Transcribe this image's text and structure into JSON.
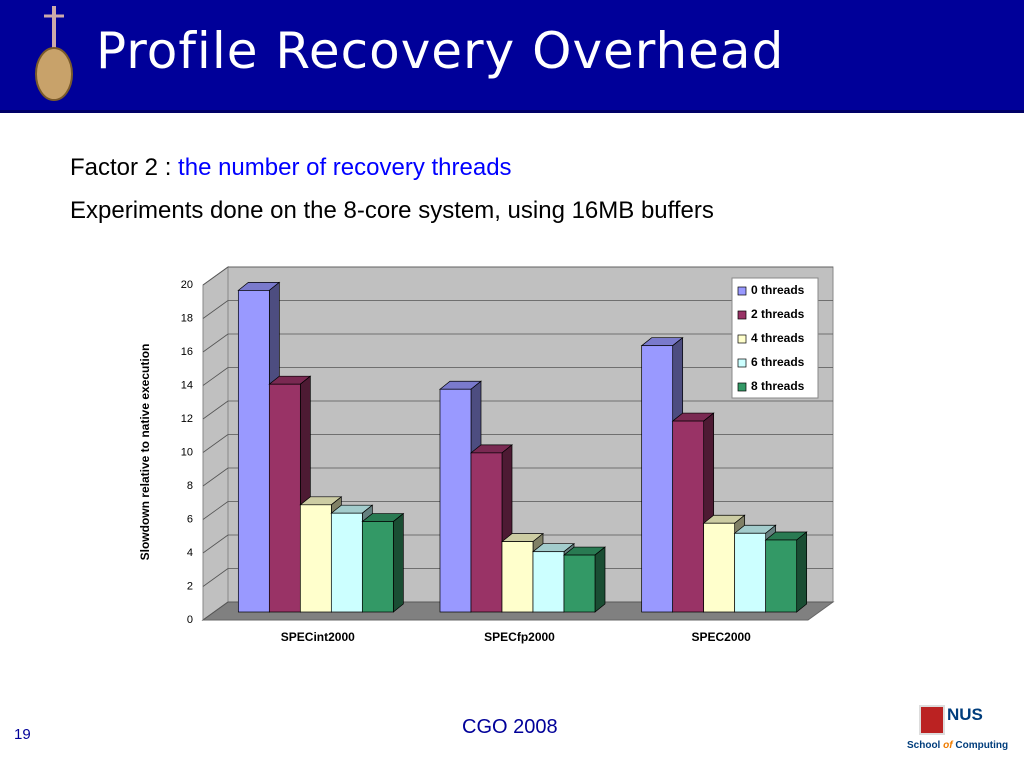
{
  "slide": {
    "title": "Profile Recovery Overhead",
    "line1_prefix": "Factor 2 : ",
    "line1_highlight": "the number of recovery threads",
    "line2": "Experiments done on the 8-core system, using 16MB buffers",
    "footer": "CGO 2008",
    "page_number": "19",
    "logo": {
      "name": "NUS",
      "school": "School",
      "of": "of",
      "computing": "Computing"
    }
  },
  "chart_data": {
    "type": "bar3d",
    "y_label": "Slowdown relative to native execution",
    "categories": [
      "SPECint2000",
      "SPECfp2000",
      "SPEC2000"
    ],
    "series": [
      {
        "name": "0 threads",
        "color": "#9999ff",
        "values": [
          19.2,
          13.3,
          15.9
        ]
      },
      {
        "name": "2 threads",
        "color": "#993366",
        "values": [
          13.6,
          9.5,
          11.4
        ]
      },
      {
        "name": "4 threads",
        "color": "#ffffcc",
        "values": [
          6.4,
          4.2,
          5.3
        ]
      },
      {
        "name": "6 threads",
        "color": "#ccffff",
        "values": [
          5.9,
          3.6,
          4.7
        ]
      },
      {
        "name": "8 threads",
        "color": "#339966",
        "values": [
          5.4,
          3.4,
          4.3
        ]
      }
    ],
    "ylim": [
      0,
      20
    ],
    "yticks": [
      0,
      2,
      4,
      6,
      8,
      10,
      12,
      14,
      16,
      18,
      20
    ],
    "grid": true,
    "legend": "top-right"
  }
}
